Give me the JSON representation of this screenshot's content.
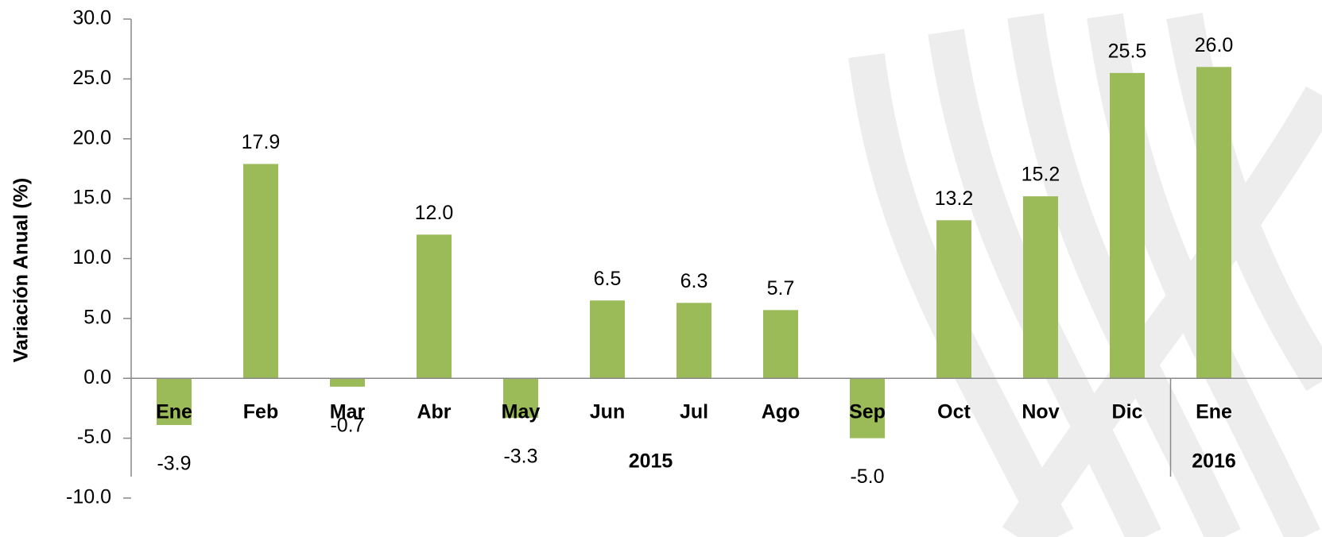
{
  "chart_data": {
    "type": "bar",
    "y_axis_label": "Variación Anual  (%)",
    "color": "#9bbb59",
    "ylim": [
      -10,
      30
    ],
    "yticks": [
      {
        "value": -10,
        "label": "-10.0"
      },
      {
        "value": -5,
        "label": "-5.0"
      },
      {
        "value": 0,
        "label": "0.0"
      },
      {
        "value": 5,
        "label": "5.0"
      },
      {
        "value": 10,
        "label": "10.0"
      },
      {
        "value": 15,
        "label": "15.0"
      },
      {
        "value": 20,
        "label": "20.0"
      },
      {
        "value": 25,
        "label": "25.0"
      },
      {
        "value": 30,
        "label": "30.0"
      }
    ],
    "groups": [
      {
        "name": "2015",
        "categories": [
          "Ene",
          "Feb",
          "Mar",
          "Abr",
          "May",
          "Jun",
          "Jul",
          "Ago",
          "Sep",
          "Oct",
          "Nov",
          "Dic"
        ],
        "values": [
          -3.9,
          17.9,
          -0.7,
          12.0,
          -3.3,
          6.5,
          6.3,
          5.7,
          -5.0,
          13.2,
          15.2,
          25.5
        ],
        "value_labels": [
          "-3.9",
          "17.9",
          "-0.7",
          "12.0",
          "-3.3",
          "6.5",
          "6.3",
          "5.7",
          "-5.0",
          "13.2",
          "15.2",
          "25.5"
        ]
      },
      {
        "name": "2016",
        "categories": [
          "Ene"
        ],
        "values": [
          26.0
        ],
        "value_labels": [
          "26.0"
        ]
      }
    ]
  }
}
